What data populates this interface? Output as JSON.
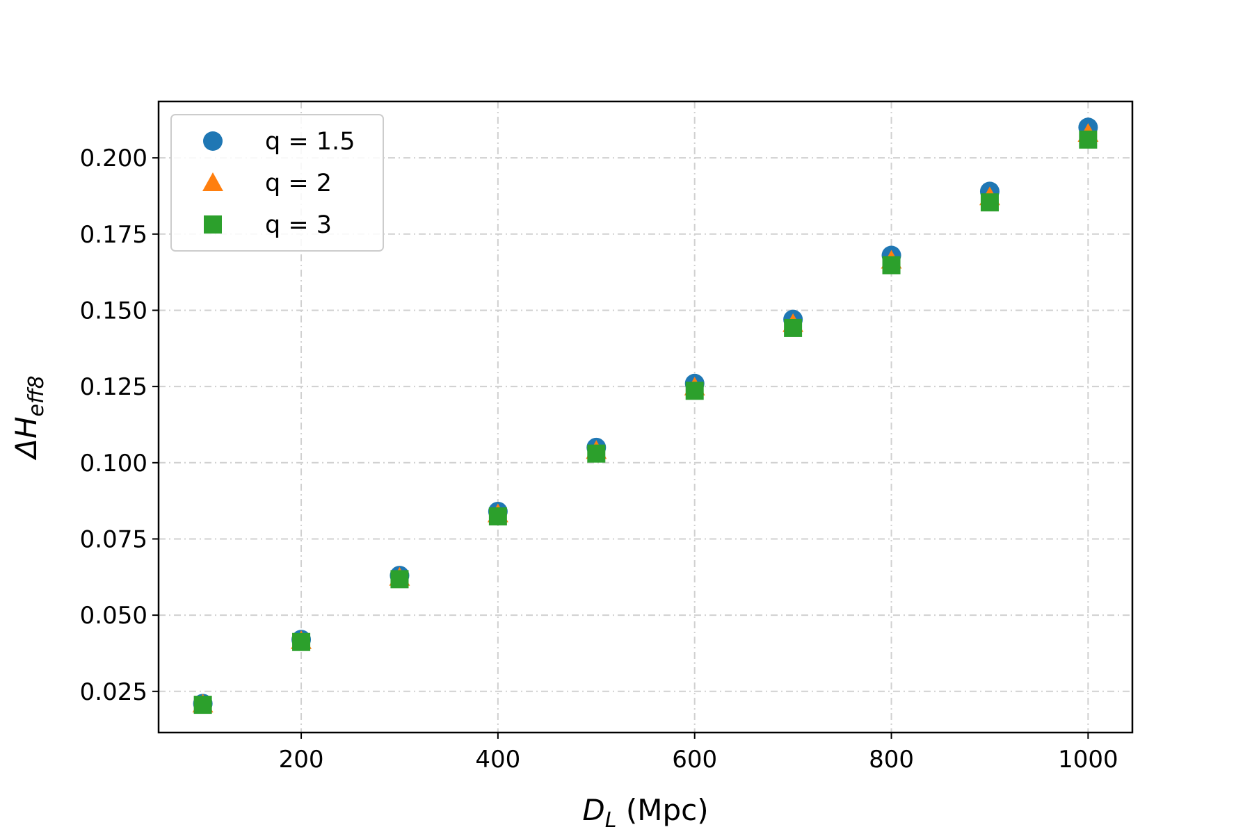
{
  "chart_data": {
    "type": "scatter",
    "xlabel_main": "D",
    "xlabel_sub": "L",
    "xlabel_rest": " (Mpc)",
    "ylabel_main": "ΔH",
    "ylabel_sub": "eff8",
    "xlim": [
      55,
      1045
    ],
    "ylim": [
      0.0115,
      0.2185
    ],
    "xticks": [
      200,
      400,
      600,
      800,
      1000
    ],
    "xtick_labels": [
      "200",
      "400",
      "600",
      "800",
      "1000"
    ],
    "yticks": [
      0.025,
      0.05,
      0.075,
      0.1,
      0.125,
      0.15,
      0.175,
      0.2
    ],
    "ytick_labels": [
      "0.025",
      "0.050",
      "0.075",
      "0.100",
      "0.125",
      "0.150",
      "0.175",
      "0.200"
    ],
    "grid": true,
    "legend_position": "top-left",
    "x": [
      100,
      200,
      300,
      400,
      500,
      600,
      700,
      800,
      900,
      1000
    ],
    "series": [
      {
        "name": "q = 1.5",
        "marker": "circle",
        "color": "#1f77b4",
        "values": [
          0.021,
          0.042,
          0.063,
          0.084,
          0.105,
          0.126,
          0.147,
          0.168,
          0.189,
          0.21
        ]
      },
      {
        "name": "q = 2",
        "marker": "triangle",
        "color": "#ff7f0e",
        "values": [
          0.0208,
          0.0416,
          0.0624,
          0.0832,
          0.104,
          0.1248,
          0.1456,
          0.1664,
          0.1872,
          0.208
        ]
      },
      {
        "name": "q = 3",
        "marker": "square",
        "color": "#2ca02c",
        "values": [
          0.0206,
          0.0412,
          0.0618,
          0.0824,
          0.103,
          0.1236,
          0.1442,
          0.1648,
          0.1854,
          0.206
        ]
      }
    ]
  }
}
